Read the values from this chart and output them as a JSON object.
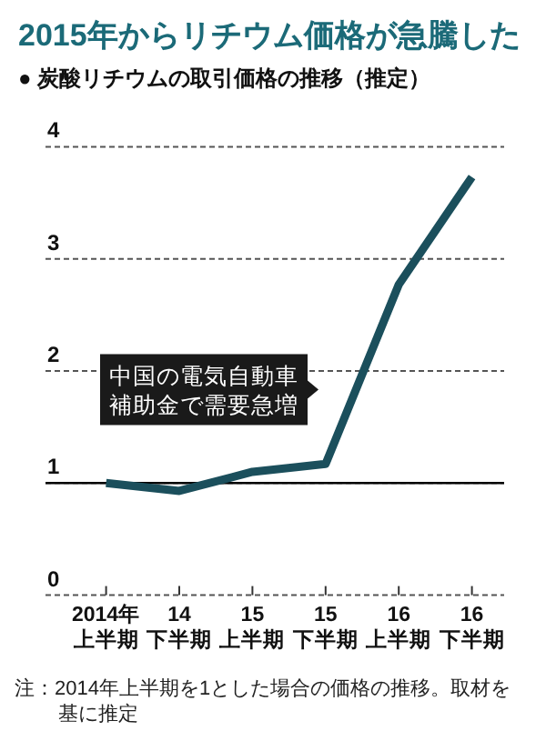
{
  "chart_data": {
    "type": "line",
    "title": "2015年からリチウム価格が急騰した",
    "subtitle": "● 炭酸リチウムの取引価格の推移（推定）",
    "categories": [
      "2014年上半期",
      "14下半期",
      "15上半期",
      "15下半期",
      "16上半期",
      "16下半期"
    ],
    "series": [
      {
        "color": "#1b4f5c",
        "values": [
          1.0,
          0.93,
          1.1,
          1.17,
          2.77,
          3.73
        ]
      }
    ],
    "ylim": [
      0,
      4
    ],
    "yticks": [
      0,
      1,
      2,
      3,
      4
    ],
    "grid": "y",
    "marker": "none",
    "line_style": "solid",
    "ref_lines": [
      {
        "axis": "y",
        "value": 1,
        "color": "#000000",
        "line_style": "solid"
      }
    ],
    "annotations": [
      "中国の電気自動車補助金で需要急増",
      "注：2014年上半期を1とした場合の価格の推移。取材を基に推定"
    ]
  }
}
